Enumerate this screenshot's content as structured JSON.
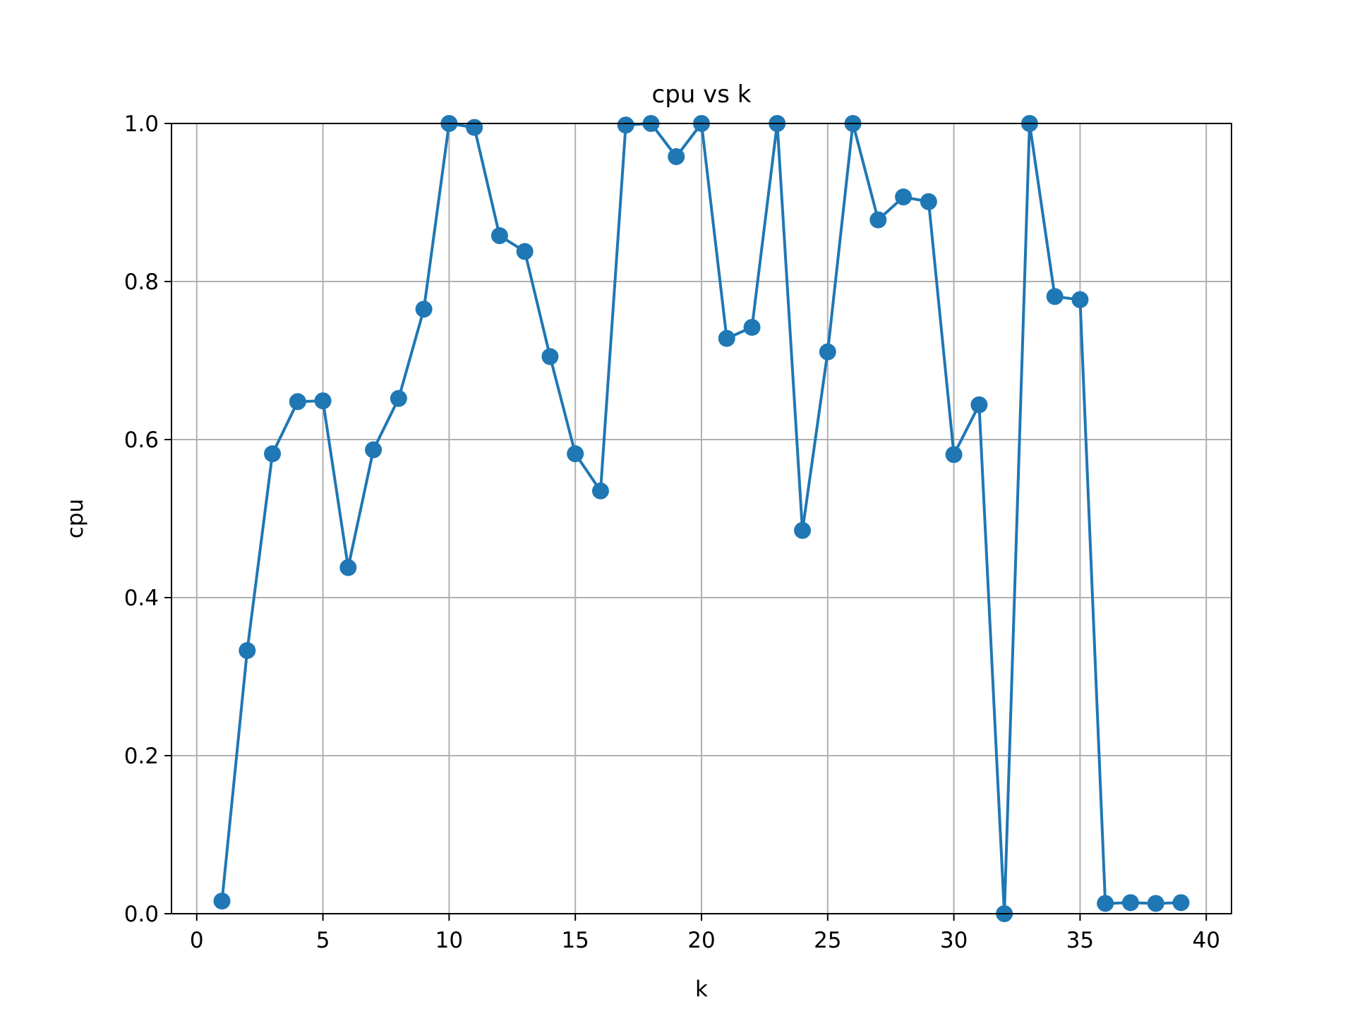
{
  "chart_data": {
    "type": "line",
    "title": "cpu vs k",
    "xlabel": "k",
    "ylabel": "cpu",
    "xlim": [
      -1,
      41
    ],
    "ylim": [
      0.0,
      1.0
    ],
    "xticks": [
      0,
      5,
      10,
      15,
      20,
      25,
      30,
      35,
      40
    ],
    "xtick_labels": [
      "0",
      "5",
      "10",
      "15",
      "20",
      "25",
      "30",
      "35",
      "40"
    ],
    "yticks": [
      0.0,
      0.2,
      0.4,
      0.6,
      0.8,
      1.0
    ],
    "ytick_labels": [
      "0.0",
      "0.2",
      "0.4",
      "0.6",
      "0.8",
      "1.0"
    ],
    "grid": true,
    "legend": false,
    "marker": "circle",
    "color": "#1f77b4",
    "series": [
      {
        "x": [
          1,
          2,
          3,
          4,
          5,
          6,
          7,
          8,
          9,
          10,
          11,
          12,
          13,
          14,
          15,
          16,
          17,
          18,
          19,
          20,
          21,
          22,
          23,
          24,
          25,
          26,
          27,
          28,
          29,
          30,
          31,
          32,
          33,
          34,
          35,
          36,
          37,
          38,
          39
        ],
        "values": [
          0.016,
          0.333,
          0.582,
          0.648,
          0.649,
          0.438,
          0.587,
          0.652,
          0.765,
          1.0,
          0.995,
          0.858,
          0.838,
          0.705,
          0.582,
          0.535,
          0.998,
          1.0,
          0.958,
          1.0,
          0.728,
          0.742,
          1.0,
          0.485,
          0.711,
          1.0,
          0.878,
          0.907,
          0.901,
          0.581,
          0.644,
          0.0,
          1.0,
          0.781,
          0.777,
          0.013,
          0.014,
          0.013,
          0.014
        ]
      }
    ]
  }
}
